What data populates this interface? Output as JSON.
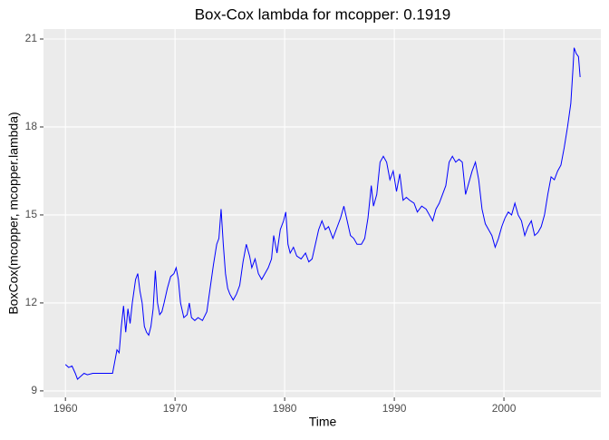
{
  "chart_data": {
    "type": "line",
    "title": "Box-Cox lambda for mcopper:  0.1919",
    "x_label": "Time",
    "y_label": "BoxCox(mcopper, mcopper.lambda)",
    "x": [
      1960.0,
      1960.3,
      1960.6,
      1960.9,
      1961.1,
      1961.4,
      1961.7,
      1962.0,
      1962.5,
      1963.0,
      1963.5,
      1964.0,
      1964.3,
      1964.5,
      1964.7,
      1964.9,
      1965.1,
      1965.3,
      1965.5,
      1965.7,
      1965.9,
      1966.1,
      1966.4,
      1966.6,
      1966.8,
      1967.0,
      1967.2,
      1967.4,
      1967.6,
      1967.8,
      1968.0,
      1968.2,
      1968.4,
      1968.6,
      1968.8,
      1969.0,
      1969.3,
      1969.6,
      1969.9,
      1970.1,
      1970.3,
      1970.5,
      1970.8,
      1971.1,
      1971.3,
      1971.5,
      1971.8,
      1972.1,
      1972.5,
      1972.9,
      1973.2,
      1973.5,
      1973.8,
      1974.0,
      1974.2,
      1974.4,
      1974.6,
      1974.8,
      1975.0,
      1975.3,
      1975.6,
      1975.9,
      1976.2,
      1976.5,
      1976.8,
      1977.0,
      1977.3,
      1977.6,
      1977.9,
      1978.2,
      1978.5,
      1978.8,
      1979.0,
      1979.3,
      1979.6,
      1979.9,
      1980.1,
      1980.3,
      1980.5,
      1980.8,
      1981.1,
      1981.5,
      1981.9,
      1982.2,
      1982.5,
      1982.8,
      1983.1,
      1983.4,
      1983.7,
      1984.0,
      1984.4,
      1984.8,
      1985.1,
      1985.4,
      1985.7,
      1986.0,
      1986.3,
      1986.6,
      1987.0,
      1987.3,
      1987.6,
      1987.9,
      1988.1,
      1988.4,
      1988.7,
      1989.0,
      1989.3,
      1989.6,
      1989.9,
      1990.2,
      1990.5,
      1990.8,
      1991.1,
      1991.4,
      1991.8,
      1992.1,
      1992.5,
      1992.9,
      1993.2,
      1993.5,
      1993.8,
      1994.1,
      1994.4,
      1994.7,
      1995.0,
      1995.3,
      1995.6,
      1995.9,
      1996.2,
      1996.5,
      1996.8,
      1997.1,
      1997.4,
      1997.7,
      1998.0,
      1998.3,
      1998.6,
      1998.9,
      1999.2,
      1999.5,
      1999.8,
      2000.1,
      2000.4,
      2000.7,
      2001.0,
      2001.3,
      2001.6,
      2001.9,
      2002.2,
      2002.5,
      2002.8,
      2003.1,
      2003.4,
      2003.7,
      2004.0,
      2004.3,
      2004.6,
      2004.9,
      2005.2,
      2005.5,
      2005.8,
      2006.1,
      2006.3,
      2006.4,
      2006.6,
      2006.8,
      2006.95
    ],
    "series": [
      {
        "color": "#0000ff",
        "values": [
          9.9,
          9.8,
          9.85,
          9.6,
          9.4,
          9.5,
          9.6,
          9.55,
          9.6,
          9.6,
          9.6,
          9.6,
          9.6,
          10.0,
          10.4,
          10.3,
          11.2,
          11.9,
          11.0,
          11.8,
          11.3,
          12.0,
          12.8,
          13.0,
          12.4,
          12.0,
          11.2,
          11.0,
          10.9,
          11.2,
          11.8,
          13.1,
          12.0,
          11.6,
          11.7,
          12.0,
          12.5,
          12.9,
          13.0,
          13.2,
          12.8,
          12.0,
          11.5,
          11.6,
          12.0,
          11.5,
          11.4,
          11.5,
          11.4,
          11.7,
          12.5,
          13.3,
          14.0,
          14.2,
          15.2,
          14.0,
          13.0,
          12.5,
          12.3,
          12.1,
          12.3,
          12.6,
          13.4,
          14.0,
          13.6,
          13.2,
          13.5,
          13.0,
          12.8,
          13.0,
          13.2,
          13.5,
          14.3,
          13.7,
          14.5,
          14.8,
          15.1,
          14.0,
          13.7,
          13.9,
          13.6,
          13.5,
          13.7,
          13.4,
          13.5,
          14.0,
          14.5,
          14.8,
          14.5,
          14.6,
          14.2,
          14.6,
          14.9,
          15.3,
          14.8,
          14.3,
          14.2,
          14.0,
          14.0,
          14.2,
          14.9,
          16.0,
          15.3,
          15.7,
          16.8,
          17.0,
          16.8,
          16.2,
          16.5,
          15.8,
          16.4,
          15.5,
          15.6,
          15.5,
          15.4,
          15.1,
          15.3,
          15.2,
          15.0,
          14.8,
          15.2,
          15.4,
          15.7,
          16.0,
          16.8,
          17.0,
          16.8,
          16.9,
          16.8,
          15.7,
          16.1,
          16.5,
          16.8,
          16.2,
          15.2,
          14.7,
          14.5,
          14.3,
          13.9,
          14.2,
          14.6,
          14.9,
          15.1,
          15.0,
          15.4,
          15.0,
          14.8,
          14.3,
          14.6,
          14.8,
          14.3,
          14.4,
          14.6,
          15.0,
          15.7,
          16.3,
          16.2,
          16.5,
          16.7,
          17.3,
          18.0,
          18.8,
          20.0,
          20.7,
          20.5,
          20.4,
          19.7
        ]
      }
    ],
    "xlim": [
      1958.0,
      2008.84
    ],
    "ylim": [
      8.78,
      21.34
    ],
    "xticks": [
      1960,
      1970,
      1980,
      1990,
      2000
    ],
    "yticks": [
      9,
      12,
      15,
      18,
      21
    ],
    "grid": true
  }
}
